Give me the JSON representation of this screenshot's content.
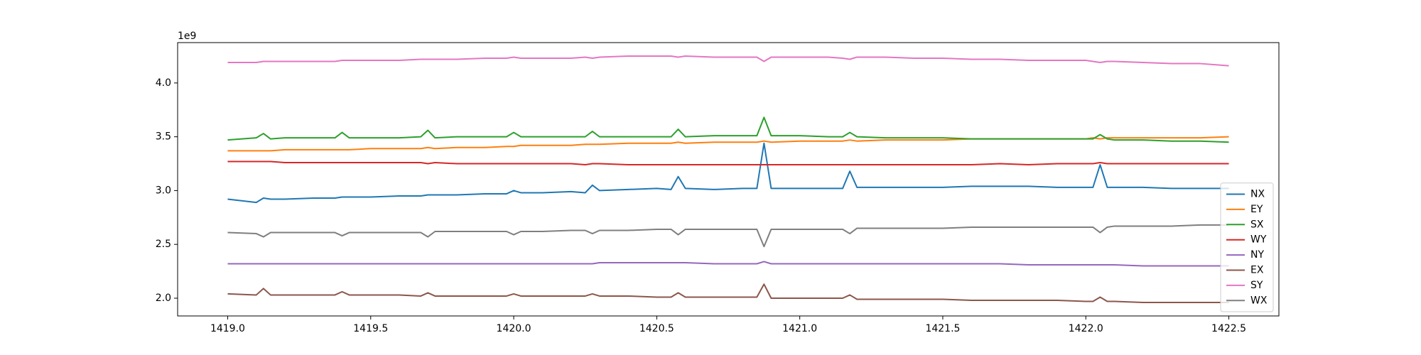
{
  "chart_data": {
    "type": "line",
    "y_offset_label": "1e9",
    "x": [
      1419.0,
      1419.1,
      1419.125,
      1419.15,
      1419.2,
      1419.3,
      1419.375,
      1419.4,
      1419.425,
      1419.5,
      1419.6,
      1419.675,
      1419.7,
      1419.725,
      1419.8,
      1419.9,
      1419.975,
      1420.0,
      1420.025,
      1420.1,
      1420.2,
      1420.25,
      1420.275,
      1420.3,
      1420.4,
      1420.5,
      1420.55,
      1420.575,
      1420.6,
      1420.7,
      1420.8,
      1420.85,
      1420.875,
      1420.9,
      1421.0,
      1421.1,
      1421.15,
      1421.175,
      1421.2,
      1421.3,
      1421.4,
      1421.5,
      1421.6,
      1421.7,
      1421.8,
      1421.9,
      1422.0,
      1422.025,
      1422.05,
      1422.075,
      1422.1,
      1422.2,
      1422.3,
      1422.4,
      1422.5
    ],
    "series": [
      {
        "name": "NX",
        "color": "#1f77b4",
        "values": [
          2.92,
          2.89,
          2.93,
          2.92,
          2.92,
          2.93,
          2.93,
          2.94,
          2.94,
          2.94,
          2.95,
          2.95,
          2.96,
          2.96,
          2.96,
          2.97,
          2.97,
          3.0,
          2.98,
          2.98,
          2.99,
          2.98,
          3.05,
          3.0,
          3.01,
          3.02,
          3.01,
          3.13,
          3.02,
          3.01,
          3.02,
          3.02,
          3.44,
          3.02,
          3.02,
          3.02,
          3.02,
          3.18,
          3.03,
          3.03,
          3.03,
          3.03,
          3.04,
          3.04,
          3.04,
          3.03,
          3.03,
          3.03,
          3.24,
          3.03,
          3.03,
          3.03,
          3.02,
          3.02,
          3.02
        ]
      },
      {
        "name": "EY",
        "color": "#ff7f0e",
        "values": [
          3.37,
          3.37,
          3.37,
          3.37,
          3.38,
          3.38,
          3.38,
          3.38,
          3.38,
          3.39,
          3.39,
          3.39,
          3.4,
          3.39,
          3.4,
          3.4,
          3.41,
          3.41,
          3.42,
          3.42,
          3.42,
          3.43,
          3.43,
          3.43,
          3.44,
          3.44,
          3.44,
          3.45,
          3.44,
          3.45,
          3.45,
          3.45,
          3.46,
          3.45,
          3.46,
          3.46,
          3.46,
          3.47,
          3.46,
          3.47,
          3.47,
          3.47,
          3.48,
          3.48,
          3.48,
          3.48,
          3.48,
          3.49,
          3.48,
          3.49,
          3.49,
          3.49,
          3.49,
          3.49,
          3.5
        ]
      },
      {
        "name": "SX",
        "color": "#2ca02c",
        "values": [
          3.47,
          3.49,
          3.53,
          3.48,
          3.49,
          3.49,
          3.49,
          3.54,
          3.49,
          3.49,
          3.49,
          3.5,
          3.56,
          3.49,
          3.5,
          3.5,
          3.5,
          3.54,
          3.5,
          3.5,
          3.5,
          3.5,
          3.55,
          3.5,
          3.5,
          3.5,
          3.5,
          3.57,
          3.5,
          3.51,
          3.51,
          3.51,
          3.68,
          3.51,
          3.51,
          3.5,
          3.5,
          3.54,
          3.5,
          3.49,
          3.49,
          3.49,
          3.48,
          3.48,
          3.48,
          3.48,
          3.48,
          3.48,
          3.52,
          3.48,
          3.47,
          3.47,
          3.46,
          3.46,
          3.45
        ]
      },
      {
        "name": "WY",
        "color": "#d62728",
        "values": [
          3.27,
          3.27,
          3.27,
          3.27,
          3.26,
          3.26,
          3.26,
          3.26,
          3.26,
          3.26,
          3.26,
          3.26,
          3.25,
          3.26,
          3.25,
          3.25,
          3.25,
          3.25,
          3.25,
          3.25,
          3.25,
          3.24,
          3.25,
          3.25,
          3.24,
          3.24,
          3.24,
          3.24,
          3.24,
          3.24,
          3.24,
          3.24,
          3.24,
          3.24,
          3.24,
          3.24,
          3.24,
          3.24,
          3.24,
          3.24,
          3.24,
          3.24,
          3.24,
          3.25,
          3.24,
          3.25,
          3.25,
          3.25,
          3.26,
          3.25,
          3.25,
          3.25,
          3.25,
          3.25,
          3.25
        ]
      },
      {
        "name": "NY",
        "color": "#9467bd",
        "values": [
          2.32,
          2.32,
          2.32,
          2.32,
          2.32,
          2.32,
          2.32,
          2.32,
          2.32,
          2.32,
          2.32,
          2.32,
          2.32,
          2.32,
          2.32,
          2.32,
          2.32,
          2.32,
          2.32,
          2.32,
          2.32,
          2.32,
          2.32,
          2.33,
          2.33,
          2.33,
          2.33,
          2.33,
          2.33,
          2.32,
          2.32,
          2.32,
          2.34,
          2.32,
          2.32,
          2.32,
          2.32,
          2.32,
          2.32,
          2.32,
          2.32,
          2.32,
          2.32,
          2.32,
          2.31,
          2.31,
          2.31,
          2.31,
          2.31,
          2.31,
          2.31,
          2.3,
          2.3,
          2.3,
          2.3
        ]
      },
      {
        "name": "EX",
        "color": "#8c564b",
        "values": [
          2.04,
          2.03,
          2.09,
          2.03,
          2.03,
          2.03,
          2.03,
          2.06,
          2.03,
          2.03,
          2.03,
          2.02,
          2.05,
          2.02,
          2.02,
          2.02,
          2.02,
          2.04,
          2.02,
          2.02,
          2.02,
          2.02,
          2.04,
          2.02,
          2.02,
          2.01,
          2.01,
          2.05,
          2.01,
          2.01,
          2.01,
          2.01,
          2.13,
          2.0,
          2.0,
          2.0,
          2.0,
          2.03,
          1.99,
          1.99,
          1.99,
          1.99,
          1.98,
          1.98,
          1.98,
          1.98,
          1.97,
          1.97,
          2.01,
          1.97,
          1.97,
          1.96,
          1.96,
          1.96,
          1.96
        ]
      },
      {
        "name": "SY",
        "color": "#e377c2",
        "values": [
          4.19,
          4.19,
          4.2,
          4.2,
          4.2,
          4.2,
          4.2,
          4.21,
          4.21,
          4.21,
          4.21,
          4.22,
          4.22,
          4.22,
          4.22,
          4.23,
          4.23,
          4.24,
          4.23,
          4.23,
          4.23,
          4.24,
          4.23,
          4.24,
          4.25,
          4.25,
          4.25,
          4.24,
          4.25,
          4.24,
          4.24,
          4.24,
          4.2,
          4.24,
          4.24,
          4.24,
          4.23,
          4.22,
          4.24,
          4.24,
          4.23,
          4.23,
          4.22,
          4.22,
          4.21,
          4.21,
          4.21,
          4.2,
          4.19,
          4.2,
          4.2,
          4.19,
          4.18,
          4.18,
          4.16
        ]
      },
      {
        "name": "WX",
        "color": "#7f7f7f",
        "values": [
          2.61,
          2.6,
          2.57,
          2.61,
          2.61,
          2.61,
          2.61,
          2.58,
          2.61,
          2.61,
          2.61,
          2.61,
          2.57,
          2.62,
          2.62,
          2.62,
          2.62,
          2.59,
          2.62,
          2.62,
          2.63,
          2.63,
          2.6,
          2.63,
          2.63,
          2.64,
          2.64,
          2.59,
          2.64,
          2.64,
          2.64,
          2.64,
          2.48,
          2.64,
          2.64,
          2.64,
          2.64,
          2.6,
          2.65,
          2.65,
          2.65,
          2.65,
          2.66,
          2.66,
          2.66,
          2.66,
          2.66,
          2.66,
          2.61,
          2.66,
          2.67,
          2.67,
          2.67,
          2.68,
          2.68
        ]
      }
    ],
    "xlim": [
      1418.825,
      1422.675
    ],
    "ylim": [
      1.835,
      4.375
    ],
    "xticks": [
      {
        "value": 1419,
        "label": "1419.0"
      },
      {
        "value": 1419.5,
        "label": "1419.5"
      },
      {
        "value": 1420,
        "label": "1420.0"
      },
      {
        "value": 1420.5,
        "label": "1420.5"
      },
      {
        "value": 1421,
        "label": "1421.0"
      },
      {
        "value": 1421.5,
        "label": "1421.5"
      },
      {
        "value": 1422,
        "label": "1422.0"
      },
      {
        "value": 1422.5,
        "label": "1422.5"
      }
    ],
    "yticks": [
      {
        "value": 2,
        "label": "2.0"
      },
      {
        "value": 2.5,
        "label": "2.5"
      },
      {
        "value": 3,
        "label": "3.0"
      },
      {
        "value": 3.5,
        "label": "3.5"
      },
      {
        "value": 4,
        "label": "4.0"
      }
    ],
    "legend": "lower right"
  }
}
